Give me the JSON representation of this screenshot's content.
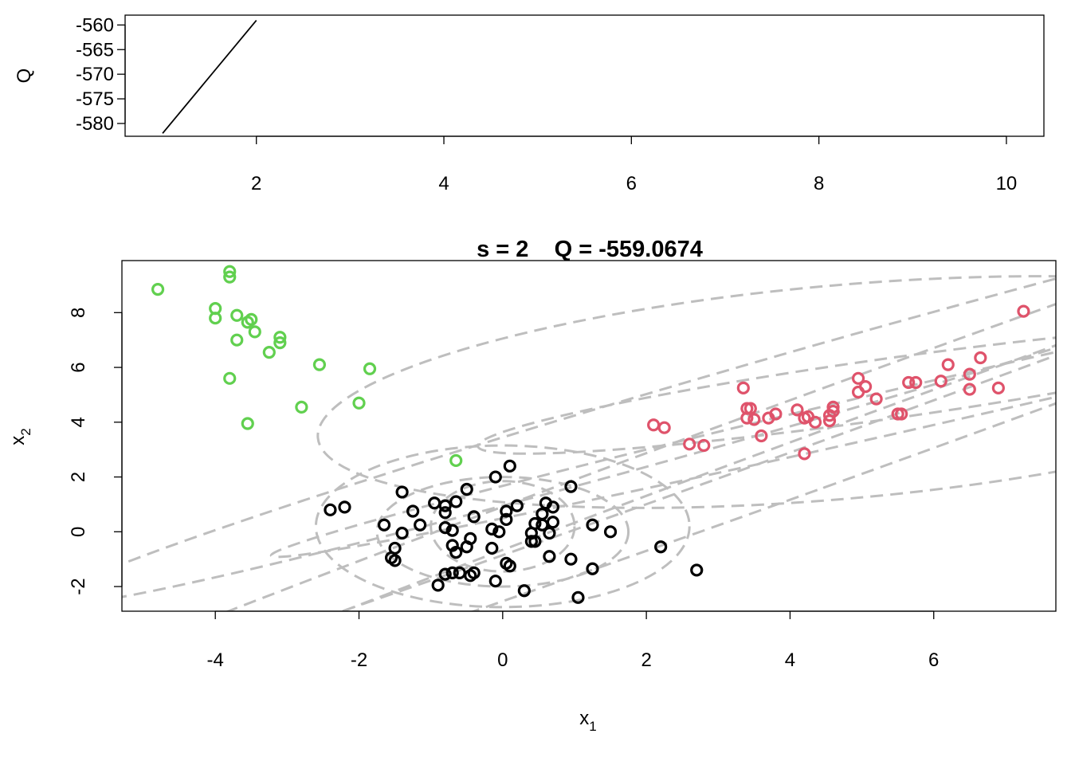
{
  "chart_data": [
    {
      "type": "line",
      "title": "",
      "ylabel": "Q",
      "xlabel": "",
      "xlim": [
        0.6,
        10.4
      ],
      "ylim": [
        -582.6,
        -558.0
      ],
      "x_ticks": [
        "2",
        "4",
        "6",
        "8",
        "10"
      ],
      "y_ticks": [
        "-560",
        "-565",
        "-570",
        "-575",
        "-580"
      ],
      "x": [
        1,
        2
      ],
      "y": [
        -582.0,
        -559.0674
      ],
      "color": "#000000"
    },
    {
      "type": "scatter",
      "title": "s = 2    Q = -559.0674",
      "xlabel_main": "x",
      "xlabel_sub": "1",
      "ylabel_main": "x",
      "ylabel_sub": "2",
      "xlim": [
        -5.3,
        7.7
      ],
      "ylim": [
        -2.9,
        9.9
      ],
      "x_ticks": [
        "-4",
        "-2",
        "0",
        "2",
        "4",
        "6"
      ],
      "y_ticks": [
        "-2",
        "0",
        "2",
        "4",
        "6",
        "8"
      ],
      "grid": false,
      "series": [
        {
          "color": "#000000",
          "points": [
            [
              0.1,
              2.4
            ],
            [
              -0.1,
              2.0
            ],
            [
              -0.5,
              1.55
            ],
            [
              0.95,
              1.65
            ],
            [
              -1.4,
              1.45
            ],
            [
              -0.65,
              1.1
            ],
            [
              -0.95,
              1.05
            ],
            [
              -0.8,
              0.95
            ],
            [
              0.6,
              1.05
            ],
            [
              0.7,
              0.9
            ],
            [
              -2.4,
              0.8
            ],
            [
              -2.2,
              0.9
            ],
            [
              -1.25,
              0.75
            ],
            [
              -0.8,
              0.7
            ],
            [
              0.05,
              0.75
            ],
            [
              0.2,
              0.95
            ],
            [
              0.55,
              0.65
            ],
            [
              -0.4,
              0.55
            ],
            [
              0.05,
              0.45
            ],
            [
              0.45,
              0.3
            ],
            [
              0.55,
              0.25
            ],
            [
              0.7,
              0.35
            ],
            [
              -1.65,
              0.25
            ],
            [
              -1.15,
              0.25
            ],
            [
              -0.8,
              0.15
            ],
            [
              -0.7,
              0.05
            ],
            [
              -0.15,
              0.1
            ],
            [
              -0.05,
              0.0
            ],
            [
              1.25,
              0.25
            ],
            [
              1.5,
              0.0
            ],
            [
              -1.4,
              -0.05
            ],
            [
              0.4,
              -0.05
            ],
            [
              0.65,
              -0.05
            ],
            [
              -0.45,
              -0.25
            ],
            [
              0.4,
              -0.35
            ],
            [
              0.45,
              -0.35
            ],
            [
              -0.7,
              -0.5
            ],
            [
              -0.5,
              -0.55
            ],
            [
              -0.15,
              -0.6
            ],
            [
              -1.5,
              -0.6
            ],
            [
              -0.65,
              -0.75
            ],
            [
              -1.55,
              -0.95
            ],
            [
              -1.5,
              -1.05
            ],
            [
              0.65,
              -0.9
            ],
            [
              0.95,
              -1.0
            ],
            [
              2.2,
              -0.55
            ],
            [
              0.05,
              -1.15
            ],
            [
              0.1,
              -1.25
            ],
            [
              -0.8,
              -1.55
            ],
            [
              -0.7,
              -1.5
            ],
            [
              -0.6,
              -1.5
            ],
            [
              -0.45,
              -1.6
            ],
            [
              -0.4,
              -1.5
            ],
            [
              -0.1,
              -1.8
            ],
            [
              -0.9,
              -1.95
            ],
            [
              0.3,
              -2.15
            ],
            [
              1.25,
              -1.35
            ],
            [
              2.7,
              -1.4
            ],
            [
              1.05,
              -2.4
            ]
          ]
        },
        {
          "color": "#DF536B",
          "points": [
            [
              7.25,
              8.05
            ],
            [
              6.65,
              6.35
            ],
            [
              6.2,
              6.1
            ],
            [
              6.5,
              5.75
            ],
            [
              4.95,
              5.6
            ],
            [
              5.65,
              5.45
            ],
            [
              5.75,
              5.45
            ],
            [
              6.1,
              5.5
            ],
            [
              6.9,
              5.25
            ],
            [
              6.5,
              5.2
            ],
            [
              3.35,
              5.25
            ],
            [
              4.95,
              5.1
            ],
            [
              5.05,
              5.3
            ],
            [
              5.2,
              4.85
            ],
            [
              3.4,
              4.5
            ],
            [
              3.45,
              4.5
            ],
            [
              4.1,
              4.45
            ],
            [
              4.6,
              4.55
            ],
            [
              3.5,
              4.1
            ],
            [
              3.4,
              4.15
            ],
            [
              3.7,
              4.15
            ],
            [
              3.8,
              4.3
            ],
            [
              4.25,
              4.2
            ],
            [
              4.2,
              4.15
            ],
            [
              4.55,
              4.25
            ],
            [
              4.6,
              4.4
            ],
            [
              4.35,
              4.0
            ],
            [
              4.55,
              4.05
            ],
            [
              5.5,
              4.3
            ],
            [
              5.55,
              4.3
            ],
            [
              3.6,
              3.5
            ],
            [
              2.1,
              3.9
            ],
            [
              2.25,
              3.8
            ],
            [
              2.6,
              3.2
            ],
            [
              2.8,
              3.15
            ],
            [
              4.2,
              2.85
            ]
          ]
        },
        {
          "color": "#61D04F",
          "points": [
            [
              -3.8,
              9.5
            ],
            [
              -3.8,
              9.3
            ],
            [
              -4.8,
              8.85
            ],
            [
              -4.0,
              8.15
            ],
            [
              -4.0,
              7.8
            ],
            [
              -3.7,
              7.9
            ],
            [
              -3.5,
              7.75
            ],
            [
              -3.55,
              7.65
            ],
            [
              -3.45,
              7.3
            ],
            [
              -3.1,
              7.1
            ],
            [
              -3.1,
              6.9
            ],
            [
              -3.7,
              7.0
            ],
            [
              -3.25,
              6.55
            ],
            [
              -2.55,
              6.1
            ],
            [
              -1.85,
              5.95
            ],
            [
              -3.8,
              5.6
            ],
            [
              -2.8,
              4.55
            ],
            [
              -2.0,
              4.7
            ],
            [
              -3.55,
              3.95
            ],
            [
              -0.65,
              2.6
            ]
          ]
        }
      ],
      "ellipses": [
        {
          "cx": 0.0,
          "cy": 0.0,
          "rx": 1.75,
          "ry": 2.0,
          "rot": 0
        },
        {
          "cx": 0.0,
          "cy": 0.2,
          "rx": 2.6,
          "ry": 2.95,
          "rot": 0
        },
        {
          "cx": 0.0,
          "cy": 0.2,
          "rx": 1.0,
          "ry": 1.65,
          "rot": 0
        },
        {
          "cx": 4.7,
          "cy": 5.1,
          "rx": 7.3,
          "ry": 3.9,
          "rot": -5
        },
        {
          "cx": 5.3,
          "cy": 5.2,
          "rx": 5.7,
          "ry": 1.1,
          "rot": -8
        },
        {
          "cx": 7.3,
          "cy": 5.5,
          "rx": 10.8,
          "ry": 0.8,
          "rot": -13
        },
        {
          "cx": 4.0,
          "cy": 5.2,
          "rx": 10.8,
          "ry": 1.3,
          "rot": -16
        },
        {
          "cx": 5.0,
          "cy": 4.8,
          "rx": 14.0,
          "ry": 0.9,
          "rot": -20
        },
        {
          "cx": 6.5,
          "cy": 4.6,
          "rx": 14.5,
          "ry": 1.0,
          "rot": -20
        }
      ]
    }
  ]
}
